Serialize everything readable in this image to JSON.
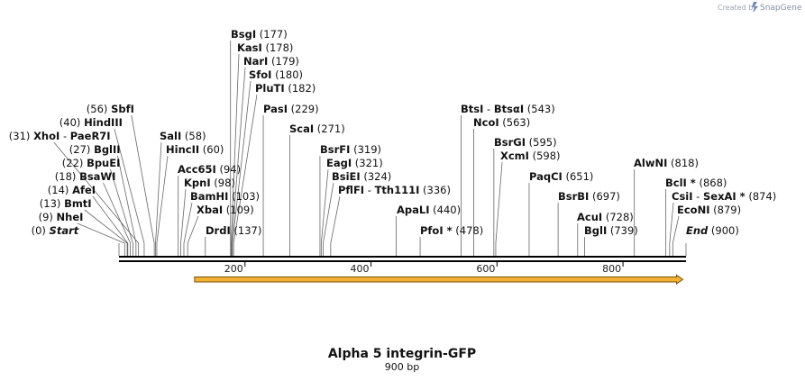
{
  "brand": {
    "prefix": "Created by",
    "name": "SnapGene"
  },
  "map": {
    "title": "Alpha 5 integrin-GFP",
    "subtitle": "900 bp",
    "length": 900,
    "ticks": [
      "200",
      "400",
      "600",
      "800"
    ],
    "feature": {
      "name": "GFP-arrow",
      "start": 120,
      "end": 895,
      "color": "#f2b233"
    }
  },
  "sites": [
    {
      "name": "Start",
      "pos": "(0)",
      "bp": 0,
      "end": true
    },
    {
      "name": "NheI",
      "pos": "(9)",
      "bp": 9
    },
    {
      "name": "BmtI",
      "pos": "(13)",
      "bp": 13
    },
    {
      "name": "AfeI",
      "pos": "(14)",
      "bp": 14
    },
    {
      "name": "BsaWI",
      "pos": "(18)",
      "bp": 18
    },
    {
      "name": "BpuEI",
      "pos": "(22)",
      "bp": 22
    },
    {
      "name": "BglII",
      "pos": "(27)",
      "bp": 27
    },
    {
      "name": "XhoI",
      "pos": "(31)",
      "bp": 31,
      "alias": "PaeR7I"
    },
    {
      "name": "HindIII",
      "pos": "(40)",
      "bp": 40
    },
    {
      "name": "SbfI",
      "pos": "(56)",
      "bp": 56
    },
    {
      "name": "SalI",
      "pos": "(58)",
      "bp": 58
    },
    {
      "name": "HincII",
      "pos": "(60)",
      "bp": 60
    },
    {
      "name": "Acc65I",
      "pos": "(94)",
      "bp": 94
    },
    {
      "name": "KpnI",
      "pos": "(98)",
      "bp": 98
    },
    {
      "name": "BamHI",
      "pos": "(103)",
      "bp": 103
    },
    {
      "name": "XbaI",
      "pos": "(109)",
      "bp": 109
    },
    {
      "name": "DrdI",
      "pos": "(137)",
      "bp": 137
    },
    {
      "name": "BsgI",
      "pos": "(177)",
      "bp": 177
    },
    {
      "name": "KasI",
      "pos": "(178)",
      "bp": 178
    },
    {
      "name": "NarI",
      "pos": "(179)",
      "bp": 179
    },
    {
      "name": "SfoI",
      "pos": "(180)",
      "bp": 180
    },
    {
      "name": "PluTI",
      "pos": "(182)",
      "bp": 182
    },
    {
      "name": "PasI",
      "pos": "(229)",
      "bp": 229
    },
    {
      "name": "ScaI",
      "pos": "(271)",
      "bp": 271
    },
    {
      "name": "BsrFI",
      "pos": "(319)",
      "bp": 319
    },
    {
      "name": "EagI",
      "pos": "(321)",
      "bp": 321
    },
    {
      "name": "BsiEI",
      "pos": "(324)",
      "bp": 324
    },
    {
      "name": "PflFI",
      "pos": "(336)",
      "bp": 336,
      "alias": "Tth111I"
    },
    {
      "name": "ApaLI",
      "pos": "(440)",
      "bp": 440
    },
    {
      "name": "PfoI *",
      "pos": "(478)",
      "bp": 478
    },
    {
      "name": "BtsI",
      "pos": "(543)",
      "bp": 543,
      "alias": "BtsαI"
    },
    {
      "name": "NcoI",
      "pos": "(563)",
      "bp": 563
    },
    {
      "name": "BsrGI",
      "pos": "(595)",
      "bp": 595
    },
    {
      "name": "XcmI",
      "pos": "(598)",
      "bp": 598
    },
    {
      "name": "PaqCI",
      "pos": "(651)",
      "bp": 651
    },
    {
      "name": "BsrBI",
      "pos": "(697)",
      "bp": 697
    },
    {
      "name": "AcuI",
      "pos": "(728)",
      "bp": 728
    },
    {
      "name": "BglI",
      "pos": "(739)",
      "bp": 739
    },
    {
      "name": "AlwNI",
      "pos": "(818)",
      "bp": 818
    },
    {
      "name": "BclI *",
      "pos": "(868)",
      "bp": 868
    },
    {
      "name": "CsiI",
      "pos": "(874)",
      "bp": 874,
      "alias": "SexAI *"
    },
    {
      "name": "EcoNI",
      "pos": "(879)",
      "bp": 879
    },
    {
      "name": "End",
      "pos": "(900)",
      "bp": 900,
      "end": true
    }
  ]
}
